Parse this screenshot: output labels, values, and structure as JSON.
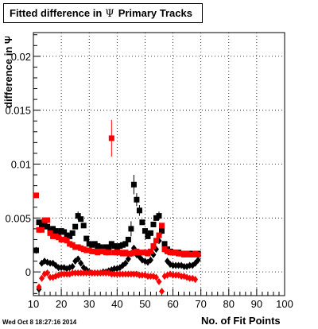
{
  "title": {
    "prefix": "Fitted difference in",
    "symbol": "Ψ",
    "suffix": "Primary Tracks"
  },
  "footer": {
    "timestamp": "Wed Oct  8 18:27:16 2014"
  },
  "chart_data": {
    "type": "scatter",
    "title": "Fitted difference in Ψ Primary Tracks",
    "xlabel": "No. of Fit Points",
    "ylabel": "difference in Ψ",
    "xlim": [
      10,
      100
    ],
    "ylim": [
      -0.0022,
      0.0222
    ],
    "x_ticks": [
      10,
      20,
      30,
      40,
      50,
      60,
      70,
      80,
      90,
      100
    ],
    "x_tick_labels": [
      "10",
      "20",
      "30",
      "40",
      "50",
      "60",
      "70",
      "80",
      "90",
      "100"
    ],
    "y_ticks": [
      0,
      0.005,
      0.01,
      0.015,
      0.02
    ],
    "y_tick_labels": [
      "0",
      "0.005",
      "0.01",
      "0.015",
      "0.02"
    ],
    "grid": true,
    "colors": {
      "black": "#000000",
      "red": "#ff0000"
    },
    "series": [
      {
        "marker": "square",
        "color": "#000000",
        "points": [
          [
            11,
            0.002
          ],
          [
            12,
            0.0046
          ],
          [
            13,
            0.0043
          ],
          [
            14,
            0.0044
          ],
          [
            15,
            0.0042
          ],
          [
            16,
            0.0038
          ],
          [
            17,
            0.004
          ],
          [
            18,
            0.0038
          ],
          [
            19,
            0.0036
          ],
          [
            20,
            0.0038
          ],
          [
            21,
            0.0037
          ],
          [
            22,
            0.0034
          ],
          [
            23,
            0.0033
          ],
          [
            24,
            0.0036
          ],
          [
            25,
            0.0042
          ],
          [
            26,
            0.0052
          ],
          [
            27,
            0.0049
          ],
          [
            28,
            0.0043
          ],
          [
            29,
            0.0031
          ],
          [
            30,
            0.0026
          ],
          [
            31,
            0.0025
          ],
          [
            32,
            0.0026
          ],
          [
            33,
            0.0024
          ],
          [
            34,
            0.0023
          ],
          [
            35,
            0.0021
          ],
          [
            36,
            0.0023
          ],
          [
            37,
            0.0023
          ],
          [
            38,
            0.0026
          ],
          [
            39,
            0.0024
          ],
          [
            40,
            0.0023
          ],
          [
            41,
            0.0024
          ],
          [
            42,
            0.0025
          ],
          [
            43,
            0.0026
          ],
          [
            44,
            0.003
          ],
          [
            45,
            0.004
          ],
          [
            46,
            0.0081
          ],
          [
            47,
            0.0067
          ],
          [
            48,
            0.0057
          ],
          [
            49,
            0.0046
          ],
          [
            50,
            0.0038
          ],
          [
            51,
            0.0033
          ],
          [
            52,
            0.0036
          ],
          [
            53,
            0.0044
          ],
          [
            54,
            0.005
          ],
          [
            55,
            0.0052
          ],
          [
            56,
            0.0038
          ],
          [
            57,
            0.0026
          ],
          [
            58,
            0.0021
          ],
          [
            59,
            0.0019
          ],
          [
            60,
            0.0018
          ],
          [
            61,
            0.0018
          ],
          [
            62,
            0.0018
          ],
          [
            63,
            0.0017
          ],
          [
            64,
            0.0017
          ],
          [
            65,
            0.0017
          ],
          [
            66,
            0.0017
          ],
          [
            67,
            0.0017
          ],
          [
            68,
            0.0017
          ],
          [
            69,
            0.0017
          ]
        ],
        "errors": {
          "45": 0.0007,
          "46": 0.0009,
          "47": 0.0006,
          "48": 0.0005,
          "26": 0.0004,
          "55": 0.0004
        }
      },
      {
        "marker": "diamond",
        "color": "#000000",
        "points": [
          [
            11,
            0.002
          ],
          [
            12,
            -0.0016
          ],
          [
            13,
            0.0008
          ],
          [
            14,
            0.001
          ],
          [
            15,
            0.0009
          ],
          [
            16,
            0.0008
          ],
          [
            17,
            0.0008
          ],
          [
            18,
            0.0006
          ],
          [
            19,
            0.0004
          ],
          [
            20,
            0.0004
          ],
          [
            21,
            0.0004
          ],
          [
            22,
            0.0003
          ],
          [
            23,
            0.0004
          ],
          [
            24,
            0.0005
          ],
          [
            25,
            0.001
          ],
          [
            26,
            0.0012
          ],
          [
            27,
            0.0008
          ],
          [
            28,
            0.0004
          ],
          [
            29,
            0.0002
          ],
          [
            30,
            0.0
          ],
          [
            31,
            -0.0001
          ],
          [
            32,
            -0.0001
          ],
          [
            33,
            -0.0001
          ],
          [
            34,
            -0.0001
          ],
          [
            35,
            0.0
          ],
          [
            36,
            0.0
          ],
          [
            37,
            0.0001
          ],
          [
            38,
            0.0002
          ],
          [
            39,
            0.0003
          ],
          [
            40,
            0.0003
          ],
          [
            41,
            0.0004
          ],
          [
            42,
            0.0006
          ],
          [
            43,
            0.0008
          ],
          [
            44,
            0.0012
          ],
          [
            45,
            0.0017
          ],
          [
            46,
            0.0022
          ],
          [
            47,
            0.0016
          ],
          [
            48,
            0.0014
          ],
          [
            49,
            0.0011
          ],
          [
            50,
            0.001
          ],
          [
            51,
            0.0009
          ],
          [
            52,
            0.0011
          ],
          [
            53,
            0.0016
          ],
          [
            54,
            0.0021
          ],
          [
            55,
            0.0029
          ],
          [
            56,
            0.0038
          ],
          [
            57,
            0.0021
          ],
          [
            58,
            0.001
          ],
          [
            59,
            0.0007
          ],
          [
            60,
            0.0006
          ],
          [
            61,
            0.0006
          ],
          [
            62,
            0.0006
          ],
          [
            63,
            0.0006
          ],
          [
            64,
            0.0005
          ],
          [
            65,
            0.0005
          ],
          [
            66,
            0.0006
          ],
          [
            67,
            0.0006
          ],
          [
            68,
            0.0008
          ],
          [
            69,
            0.0011
          ]
        ]
      },
      {
        "marker": "square",
        "color": "#ff0000",
        "points": [
          [
            11,
            0.0071
          ],
          [
            12,
            0.0039
          ],
          [
            13,
            0.0039
          ],
          [
            14,
            0.0048
          ],
          [
            15,
            0.0048
          ],
          [
            16,
            0.0036
          ],
          [
            17,
            0.0033
          ],
          [
            18,
            0.0033
          ],
          [
            19,
            0.0032
          ],
          [
            20,
            0.003
          ],
          [
            21,
            0.003
          ],
          [
            22,
            0.0029
          ],
          [
            23,
            0.0026
          ],
          [
            24,
            0.0025
          ],
          [
            25,
            0.0023
          ],
          [
            26,
            0.0023
          ],
          [
            27,
            0.0022
          ],
          [
            28,
            0.0021
          ],
          [
            29,
            0.002
          ],
          [
            30,
            0.002
          ],
          [
            31,
            0.0019
          ],
          [
            32,
            0.0019
          ],
          [
            33,
            0.0018
          ],
          [
            34,
            0.0019
          ],
          [
            35,
            0.0019
          ],
          [
            36,
            0.0018
          ],
          [
            37,
            0.0018
          ],
          [
            38,
            0.0124
          ],
          [
            39,
            0.0018
          ],
          [
            40,
            0.0018
          ],
          [
            41,
            0.0018
          ],
          [
            42,
            0.0017
          ],
          [
            43,
            0.0018
          ],
          [
            44,
            0.0017
          ],
          [
            45,
            0.0017
          ],
          [
            46,
            0.0018
          ],
          [
            47,
            0.0019
          ],
          [
            48,
            0.0018
          ],
          [
            49,
            0.0018
          ],
          [
            50,
            0.0018
          ],
          [
            51,
            0.0017
          ],
          [
            52,
            0.0019
          ],
          [
            53,
            0.0024
          ],
          [
            54,
            0.0029
          ],
          [
            55,
            0.0034
          ],
          [
            56,
            0.0043
          ],
          [
            57,
            0.0021
          ],
          [
            58,
            0.0019
          ],
          [
            59,
            0.0018
          ],
          [
            60,
            0.0018
          ],
          [
            61,
            0.0018
          ],
          [
            62,
            0.0017
          ],
          [
            63,
            0.0017
          ],
          [
            64,
            0.0016
          ],
          [
            65,
            0.0017
          ],
          [
            66,
            0.0016
          ],
          [
            67,
            0.0016
          ],
          [
            68,
            0.0017
          ],
          [
            69,
            0.0016
          ]
        ],
        "errors": {
          "38": 0.0017
        }
      },
      {
        "marker": "diamond",
        "color": "#ff0000",
        "points": [
          [
            12,
            -0.0014
          ],
          [
            13,
            -0.0006
          ],
          [
            14,
            -0.0002
          ],
          [
            15,
            -0.0001
          ],
          [
            16,
            -0.0005
          ],
          [
            17,
            -0.0005
          ],
          [
            18,
            -0.0004
          ],
          [
            19,
            -0.0003
          ],
          [
            20,
            -0.0002
          ],
          [
            21,
            -0.0002
          ],
          [
            22,
            -0.0002
          ],
          [
            23,
            -0.0002
          ],
          [
            24,
            -0.0001
          ],
          [
            25,
            -0.0001
          ],
          [
            26,
            -0.0001
          ],
          [
            27,
            -0.0001
          ],
          [
            28,
            -0.0001
          ],
          [
            29,
            -0.0001
          ],
          [
            30,
            -0.0001
          ],
          [
            31,
            -0.0001
          ],
          [
            32,
            -0.0001
          ],
          [
            33,
            -0.0001
          ],
          [
            34,
            -0.0001
          ],
          [
            35,
            -0.0001
          ],
          [
            36,
            -0.0001
          ],
          [
            37,
            -0.0001
          ],
          [
            38,
            -0.0002
          ],
          [
            39,
            -0.0002
          ],
          [
            40,
            -0.0002
          ],
          [
            41,
            -0.0002
          ],
          [
            42,
            -0.0002
          ],
          [
            43,
            -0.0002
          ],
          [
            44,
            -0.0002
          ],
          [
            45,
            -0.0002
          ],
          [
            46,
            -0.0002
          ],
          [
            47,
            -0.0002
          ],
          [
            48,
            -0.0003
          ],
          [
            49,
            -0.0003
          ],
          [
            50,
            -0.0003
          ],
          [
            51,
            -0.0004
          ],
          [
            52,
            -0.0004
          ],
          [
            53,
            -0.0004
          ],
          [
            54,
            -0.0005
          ],
          [
            55,
            -0.0009
          ],
          [
            56,
            -0.0018
          ],
          [
            57,
            -0.0004
          ],
          [
            58,
            -0.0003
          ],
          [
            59,
            -0.0002
          ],
          [
            60,
            -0.0003
          ],
          [
            61,
            -0.0003
          ],
          [
            62,
            -0.0003
          ],
          [
            63,
            -0.0004
          ],
          [
            64,
            -0.0004
          ],
          [
            65,
            -0.0005
          ],
          [
            66,
            -0.0006
          ],
          [
            67,
            -0.0006
          ],
          [
            68,
            -0.0007
          ]
        ]
      }
    ]
  }
}
